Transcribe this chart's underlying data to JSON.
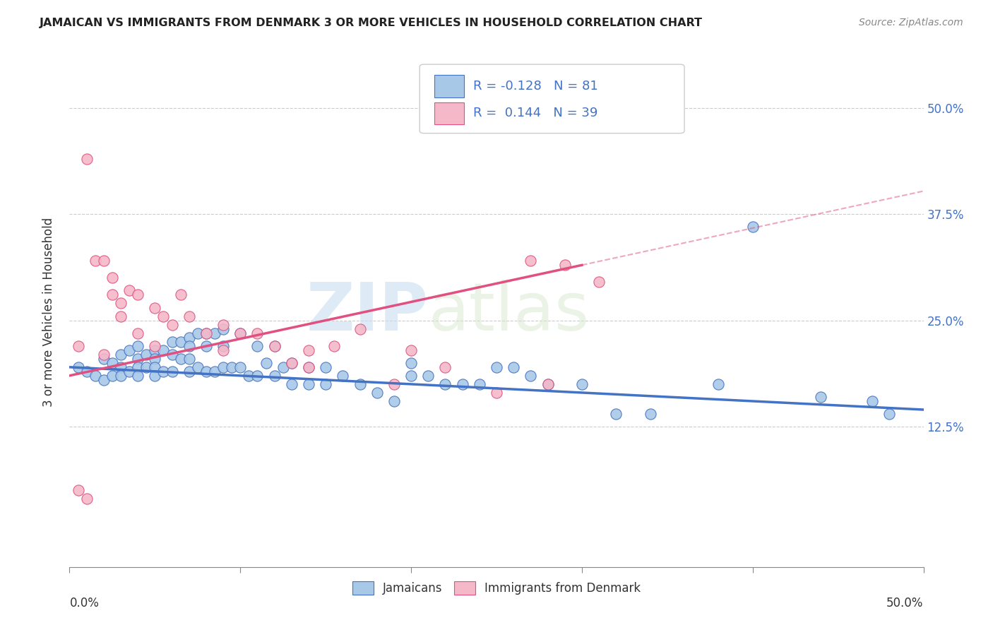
{
  "title": "JAMAICAN VS IMMIGRANTS FROM DENMARK 3 OR MORE VEHICLES IN HOUSEHOLD CORRELATION CHART",
  "source": "Source: ZipAtlas.com",
  "ylabel": "3 or more Vehicles in Household",
  "ytick_labels": [
    "12.5%",
    "25.0%",
    "37.5%",
    "50.0%"
  ],
  "ytick_values": [
    0.125,
    0.25,
    0.375,
    0.5
  ],
  "xtick_positions": [
    0.0,
    0.1,
    0.2,
    0.3,
    0.4,
    0.5
  ],
  "xmin": 0.0,
  "xmax": 0.5,
  "ymin": -0.04,
  "ymax": 0.56,
  "color_blue": "#a8c8e8",
  "color_blue_line": "#4472c4",
  "color_pink": "#f4b8c8",
  "color_pink_line": "#e05080",
  "color_blue_text": "#4472c4",
  "background": "#ffffff",
  "grid_color": "#cccccc",
  "watermark_zip": "ZIP",
  "watermark_atlas": "atlas",
  "blue_scatter_x": [
    0.005,
    0.01,
    0.015,
    0.02,
    0.02,
    0.025,
    0.025,
    0.03,
    0.03,
    0.03,
    0.035,
    0.035,
    0.04,
    0.04,
    0.04,
    0.04,
    0.045,
    0.045,
    0.05,
    0.05,
    0.05,
    0.05,
    0.055,
    0.055,
    0.06,
    0.06,
    0.06,
    0.065,
    0.065,
    0.07,
    0.07,
    0.07,
    0.07,
    0.075,
    0.075,
    0.08,
    0.08,
    0.08,
    0.085,
    0.085,
    0.09,
    0.09,
    0.09,
    0.095,
    0.1,
    0.1,
    0.105,
    0.11,
    0.11,
    0.115,
    0.12,
    0.12,
    0.125,
    0.13,
    0.13,
    0.14,
    0.14,
    0.15,
    0.15,
    0.16,
    0.17,
    0.18,
    0.19,
    0.2,
    0.2,
    0.21,
    0.22,
    0.23,
    0.24,
    0.25,
    0.26,
    0.27,
    0.28,
    0.3,
    0.32,
    0.34,
    0.38,
    0.4,
    0.44,
    0.47,
    0.48
  ],
  "blue_scatter_y": [
    0.195,
    0.19,
    0.185,
    0.205,
    0.18,
    0.2,
    0.185,
    0.21,
    0.195,
    0.185,
    0.215,
    0.19,
    0.22,
    0.205,
    0.195,
    0.185,
    0.21,
    0.195,
    0.215,
    0.205,
    0.195,
    0.185,
    0.215,
    0.19,
    0.225,
    0.21,
    0.19,
    0.225,
    0.205,
    0.23,
    0.22,
    0.205,
    0.19,
    0.235,
    0.195,
    0.235,
    0.22,
    0.19,
    0.235,
    0.19,
    0.24,
    0.22,
    0.195,
    0.195,
    0.235,
    0.195,
    0.185,
    0.22,
    0.185,
    0.2,
    0.22,
    0.185,
    0.195,
    0.2,
    0.175,
    0.195,
    0.175,
    0.195,
    0.175,
    0.185,
    0.175,
    0.165,
    0.155,
    0.2,
    0.185,
    0.185,
    0.175,
    0.175,
    0.175,
    0.195,
    0.195,
    0.185,
    0.175,
    0.175,
    0.14,
    0.14,
    0.175,
    0.36,
    0.16,
    0.155,
    0.14
  ],
  "pink_scatter_x": [
    0.005,
    0.005,
    0.01,
    0.01,
    0.015,
    0.02,
    0.02,
    0.025,
    0.025,
    0.03,
    0.03,
    0.035,
    0.04,
    0.04,
    0.05,
    0.05,
    0.055,
    0.06,
    0.065,
    0.07,
    0.08,
    0.09,
    0.09,
    0.1,
    0.11,
    0.12,
    0.13,
    0.14,
    0.14,
    0.155,
    0.17,
    0.19,
    0.2,
    0.22,
    0.25,
    0.27,
    0.28,
    0.29,
    0.31
  ],
  "pink_scatter_y": [
    0.22,
    0.05,
    0.44,
    0.04,
    0.32,
    0.32,
    0.21,
    0.3,
    0.28,
    0.27,
    0.255,
    0.285,
    0.28,
    0.235,
    0.265,
    0.22,
    0.255,
    0.245,
    0.28,
    0.255,
    0.235,
    0.245,
    0.215,
    0.235,
    0.235,
    0.22,
    0.2,
    0.215,
    0.195,
    0.22,
    0.24,
    0.175,
    0.215,
    0.195,
    0.165,
    0.32,
    0.175,
    0.315,
    0.295
  ],
  "blue_line_x": [
    0.0,
    0.5
  ],
  "blue_line_y": [
    0.195,
    0.145
  ],
  "pink_line_x": [
    0.0,
    0.3
  ],
  "pink_line_y": [
    0.185,
    0.315
  ]
}
